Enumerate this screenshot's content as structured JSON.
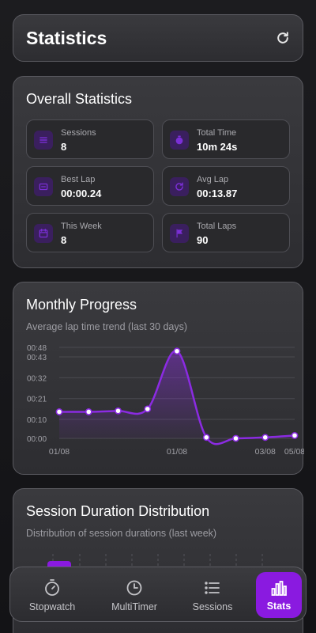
{
  "header": {
    "title": "Statistics",
    "refresh_icon": "refresh-icon"
  },
  "overall": {
    "title": "Overall Statistics",
    "stats": [
      {
        "label": "Sessions",
        "value": "8",
        "icon": "list-icon"
      },
      {
        "label": "Total Time",
        "value": "10m 24s",
        "icon": "timer-icon"
      },
      {
        "label": "Best Lap",
        "value": "00:00.24",
        "icon": "trophy-icon"
      },
      {
        "label": "Avg Lap",
        "value": "00:13.87",
        "icon": "history-icon"
      },
      {
        "label": "This Week",
        "value": "8",
        "icon": "calendar-icon"
      },
      {
        "label": "Total Laps",
        "value": "90",
        "icon": "flag-icon"
      }
    ]
  },
  "monthly": {
    "title": "Monthly Progress",
    "subtitle": "Average lap time trend (last 30 days)"
  },
  "distribution": {
    "title": "Session Duration Distribution",
    "subtitle": "Distribution of session durations (last week)"
  },
  "nav": {
    "items": [
      {
        "label": "Stopwatch",
        "icon": "stopwatch-icon"
      },
      {
        "label": "MultiTimer",
        "icon": "clock-icon"
      },
      {
        "label": "Sessions",
        "icon": "list-icon"
      },
      {
        "label": "Stats",
        "icon": "bar-chart-icon"
      }
    ],
    "active": "Stats"
  },
  "colors": {
    "accent": "#8a1ae0",
    "line": "#8b2be2",
    "point_fill": "#ffffff"
  },
  "chart_data": {
    "type": "line",
    "title": "Monthly Progress",
    "subtitle": "Average lap time trend (last 30 days)",
    "y_tick_labels": [
      "00:00",
      "00:10",
      "00:21",
      "00:32",
      "00:43",
      "00:48"
    ],
    "y_ticks_seconds": [
      0,
      10,
      21,
      32,
      43,
      48
    ],
    "ylim": [
      0,
      48
    ],
    "x_tick_labels": [
      "01/08",
      "01/08",
      "03/08",
      "05/08"
    ],
    "x_tick_points": [
      0,
      4,
      7,
      8
    ],
    "series": [
      {
        "values": [
          14,
          14,
          14.5,
          15.5,
          46,
          0.5,
          0,
          0.5,
          1.5
        ]
      }
    ],
    "grid": true
  }
}
